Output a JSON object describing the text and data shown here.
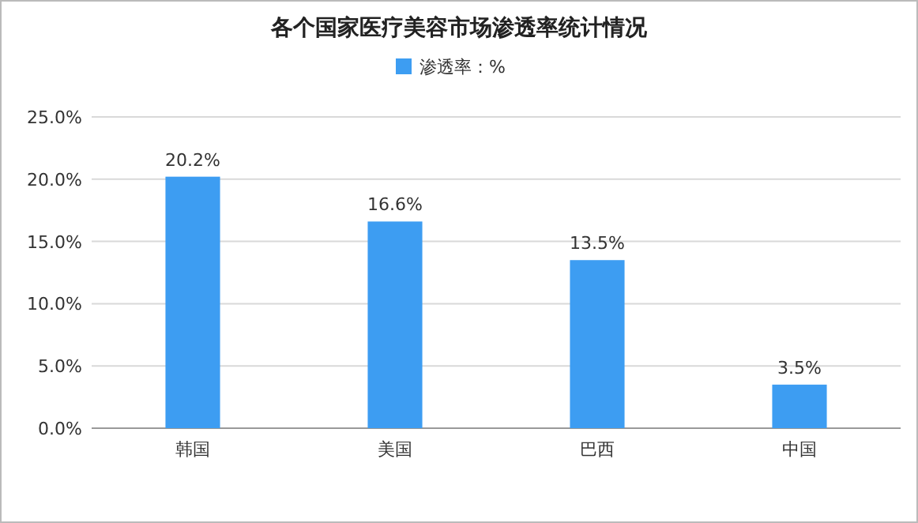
{
  "chart_data": {
    "type": "bar",
    "title": "各个国家医疗美容市场渗透率统计情况",
    "categories": [
      "韩国",
      "美国",
      "巴西",
      "中国"
    ],
    "series": [
      {
        "name": "渗透率：%",
        "color": "#3d9df2",
        "values": [
          20.2,
          16.6,
          13.5,
          3.5
        ],
        "value_labels": [
          "20.2%",
          "16.6%",
          "13.5%",
          "3.5%"
        ]
      }
    ],
    "ylim": [
      0,
      25
    ],
    "yticks": [
      {
        "value": 0,
        "label": "0.0%"
      },
      {
        "value": 5,
        "label": "5.0%"
      },
      {
        "value": 10,
        "label": "10.0%"
      },
      {
        "value": 15,
        "label": "15.0%"
      },
      {
        "value": 20,
        "label": "20.0%"
      },
      {
        "value": 25,
        "label": "25.0%"
      }
    ],
    "grid": "y",
    "legend": "top"
  }
}
